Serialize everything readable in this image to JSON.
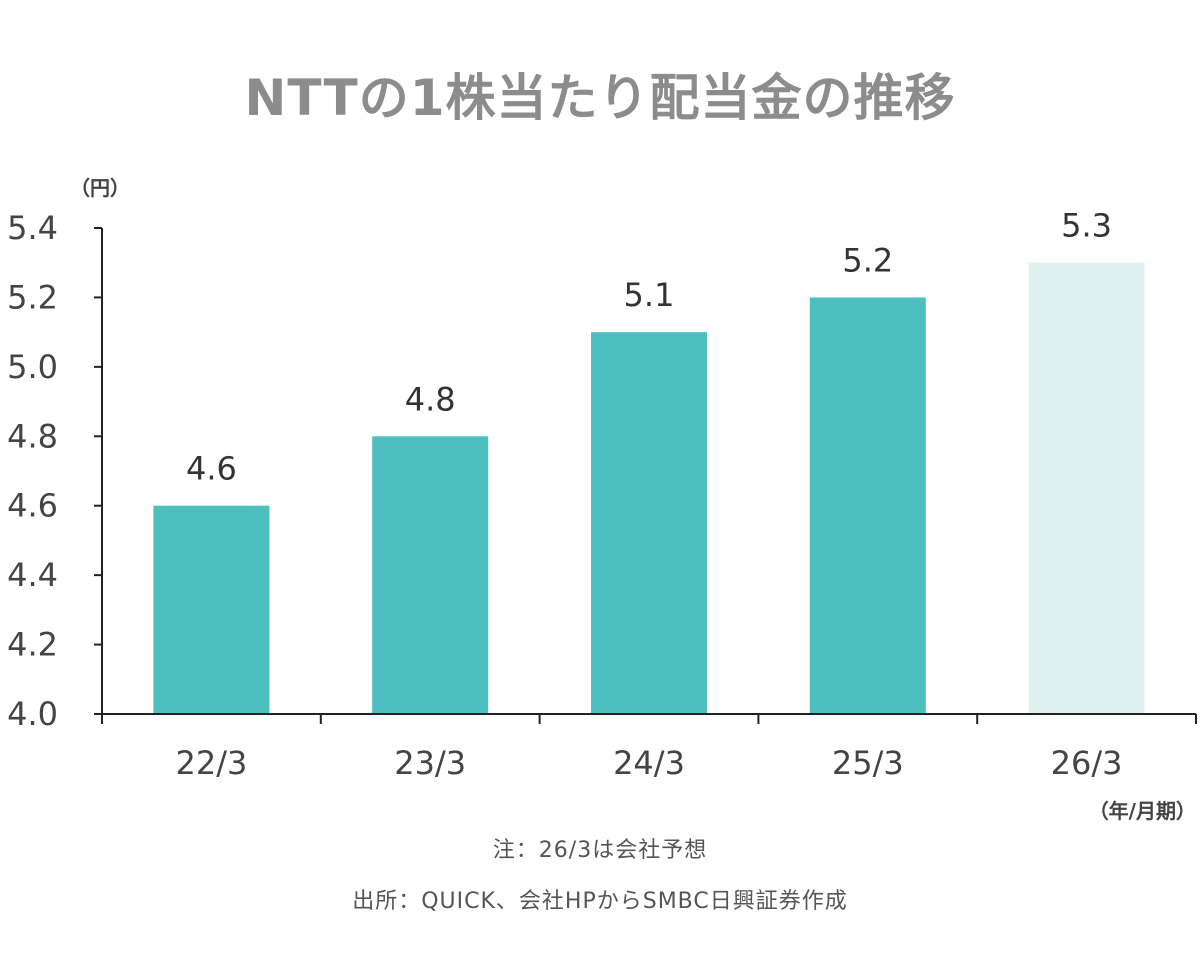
{
  "title": "NTTの1株当たり配当金の推移",
  "y_unit": "（円）",
  "x_unit": "（年/月期）",
  "notes": {
    "note": "注：26/3は会社予想",
    "source": "出所：QUICK、会社HPからSMBC日興証券作成"
  },
  "colors": {
    "actual": "#4dbfbf",
    "forecast": "#dff2f2",
    "axis": "#222222",
    "tick_text": "#444444",
    "label_text": "#333333"
  },
  "chart_data": {
    "type": "bar",
    "title": "NTTの1株当たり配当金の推移",
    "xlabel": "（年/月期）",
    "ylabel": "（円）",
    "categories": [
      "22/3",
      "23/3",
      "24/3",
      "25/3",
      "26/3"
    ],
    "values": [
      4.6,
      4.8,
      5.1,
      5.2,
      5.3
    ],
    "value_labels": [
      "4.6",
      "4.8",
      "5.1",
      "5.2",
      "5.3"
    ],
    "forecast": [
      false,
      false,
      false,
      false,
      true
    ],
    "ylim": [
      4.0,
      5.4
    ],
    "y_ticks": [
      "4.0",
      "4.2",
      "4.4",
      "4.6",
      "4.8",
      "5.0",
      "5.2",
      "5.4"
    ],
    "grid": false,
    "legend": "none"
  }
}
